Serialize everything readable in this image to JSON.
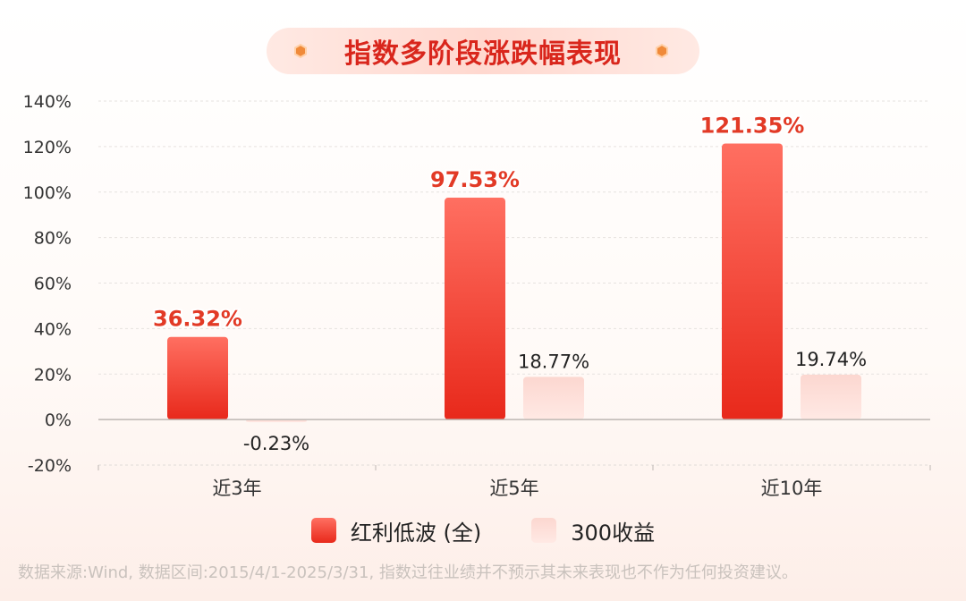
{
  "title": "指数多阶段涨跌幅表现",
  "footnote": "数据来源:Wind, 数据区间:2015/4/1-2025/3/31, 指数过往业绩并不预示其未来表现也不作为任何投资建议。",
  "colors": {
    "series1_top": "#ff6f61",
    "series1_bottom": "#e8291b",
    "series1_label": "#e23a26",
    "series2_top": "#fcd7d0",
    "series2_bottom": "#ffe9e4",
    "title": "#d9261c",
    "hex": "#f08a3a"
  },
  "chart_data": {
    "type": "bar",
    "categories": [
      "近3年",
      "近5年",
      "近10年"
    ],
    "series": [
      {
        "name": "红利低波 (全)",
        "values": [
          36.32,
          97.53,
          121.35
        ],
        "labels": [
          "36.32%",
          "97.53%",
          "121.35%"
        ]
      },
      {
        "name": "300收益",
        "values": [
          -0.23,
          18.77,
          19.74
        ],
        "labels": [
          "-0.23%",
          "18.77%",
          "19.74%"
        ]
      }
    ],
    "yticks": [
      "140%",
      "120%",
      "100%",
      "80%",
      "60%",
      "40%",
      "20%",
      "0%",
      "-20%"
    ],
    "ylim": [
      -20,
      140
    ],
    "grid": true,
    "legend": "bottom"
  }
}
